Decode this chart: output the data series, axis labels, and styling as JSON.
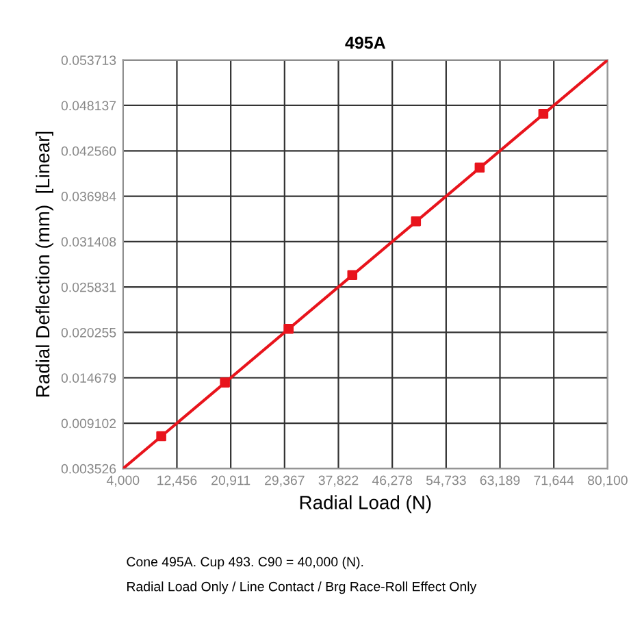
{
  "chart_data": {
    "type": "line",
    "title": "495A",
    "xlabel": "Radial Load (N)",
    "ylabel": "Radial Deflection (mm)  [Linear]",
    "series": [
      {
        "color": "#e8141c",
        "marker": "none",
        "x": [
          4000,
          80100
        ],
        "values": [
          0.003526,
          0.053713
        ]
      },
      {
        "type": "scatter",
        "color": "#e8141c",
        "marker": "square",
        "x": [
          10000,
          20000,
          30000,
          40000,
          50000,
          60000,
          70000
        ],
        "values": [
          0.0075,
          0.0141,
          0.0207,
          0.0273,
          0.0339,
          0.0405,
          0.0471
        ]
      }
    ],
    "xlim": [
      4000,
      80100
    ],
    "xticks": [
      {
        "value": 4000,
        "label": "4,000"
      },
      {
        "value": 12456,
        "label": "12,456"
      },
      {
        "value": 20911,
        "label": "20,911"
      },
      {
        "value": 29367,
        "label": "29,367"
      },
      {
        "value": 37822,
        "label": "37,822"
      },
      {
        "value": 46278,
        "label": "46,278"
      },
      {
        "value": 54733,
        "label": "54,733"
      },
      {
        "value": 63189,
        "label": "63,189"
      },
      {
        "value": 71644,
        "label": "71,644"
      },
      {
        "value": 80100,
        "label": "80,100"
      }
    ],
    "ylim": [
      0.003526,
      0.053713
    ],
    "yticks": [
      0.003526,
      0.009102,
      0.014679,
      0.020255,
      0.025831,
      0.031408,
      0.036984,
      {
        "value": 0.04256,
        "label": "0.042560"
      },
      0.048137,
      0.053713
    ],
    "grid": true,
    "annotations": [
      "Cone 495A. Cup 493. C90 = 40,000 (N).",
      "Radial Load Only / Line Contact / Brg Race-Roll Effect Only"
    ]
  }
}
